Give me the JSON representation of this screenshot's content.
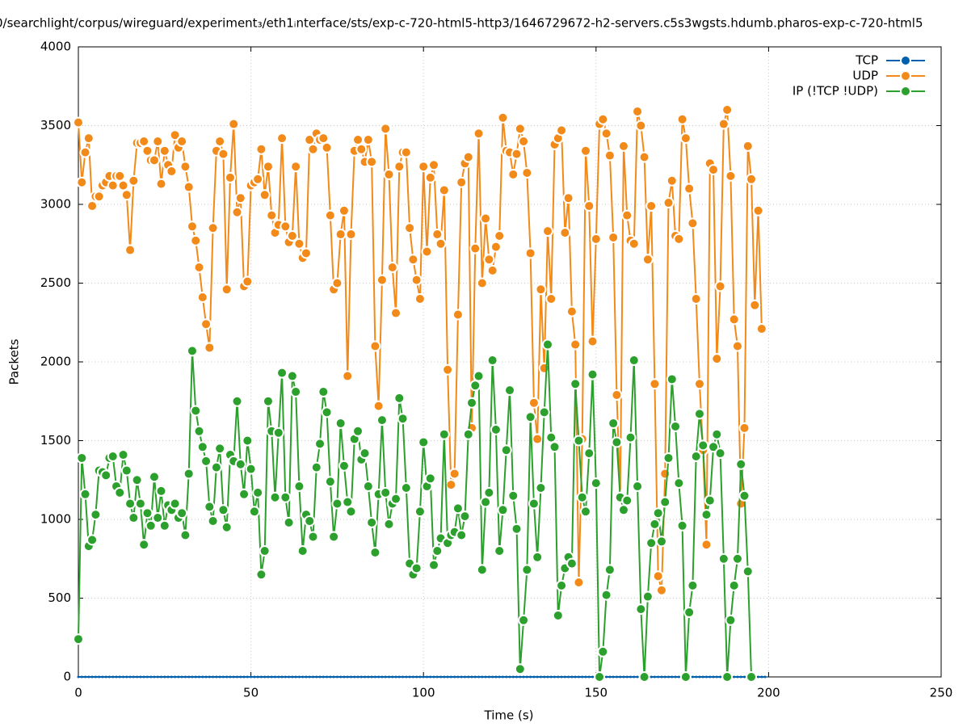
{
  "chart_data": {
    "type": "line",
    "title": "0/searchlight/corpus/wireguard/experiment₃/eth1ᵢnterface/sts/exp-c-720-html5-http3/1646729672-h2-servers.c5s3wgsts.hdumb.pharos-exp-c-720-html5",
    "xlabel": "Time (s)",
    "ylabel": "Packets",
    "xlim": [
      0,
      250
    ],
    "xticks": [
      0,
      50,
      100,
      150,
      200,
      250
    ],
    "ylim": [
      0,
      4000
    ],
    "yticks": [
      0,
      500,
      1000,
      1500,
      2000,
      2500,
      3000,
      3500,
      4000
    ],
    "grid": true,
    "legend": "upper right",
    "series": [
      {
        "name": "TCP",
        "color": "#0060ad",
        "values": [
          0,
          0,
          0,
          0,
          0,
          0,
          0,
          0,
          0,
          0,
          0,
          0,
          0,
          0,
          0,
          0,
          0,
          0,
          0,
          0,
          0,
          0,
          0,
          0,
          0,
          0,
          0,
          0,
          0,
          0,
          0,
          0,
          0,
          0,
          0,
          0,
          0,
          0,
          0,
          0,
          0,
          0,
          0,
          0,
          0,
          0,
          0,
          0,
          0,
          0,
          0,
          0,
          0,
          0,
          0,
          0,
          0,
          0,
          0,
          0,
          0,
          0,
          0,
          0,
          0,
          0,
          0,
          0,
          0,
          0,
          0,
          0,
          0,
          0,
          0,
          0,
          0,
          0,
          0,
          0,
          0,
          0,
          0,
          0,
          0,
          0,
          0,
          0,
          0,
          0,
          0,
          0,
          0,
          0,
          0,
          0,
          0,
          0,
          0,
          0,
          0,
          0,
          0,
          0,
          0,
          0,
          0,
          0,
          0,
          0,
          0,
          0,
          0,
          0,
          0,
          0,
          0,
          0,
          0,
          0,
          0,
          0,
          0,
          0,
          0,
          0,
          0,
          0,
          0,
          0,
          0,
          0,
          0,
          0,
          0,
          0,
          0,
          0,
          0,
          0,
          0,
          0,
          0,
          0,
          0,
          0,
          0,
          0,
          0,
          0,
          0,
          0,
          0,
          0,
          0,
          0,
          0,
          0,
          0,
          0,
          0,
          0,
          0,
          0,
          0,
          0,
          0,
          0,
          0,
          0,
          0,
          0,
          0,
          0,
          0,
          0,
          0,
          0,
          0,
          0,
          0,
          0,
          0,
          0,
          0,
          0,
          0,
          0,
          0,
          0,
          0,
          0,
          0,
          0,
          0,
          0,
          0,
          0,
          0,
          0
        ]
      },
      {
        "name": "UDP",
        "color": "#f28a1a",
        "values": [
          3520,
          3140,
          3330,
          3420,
          2990,
          3050,
          3050,
          3120,
          3140,
          3180,
          3120,
          3180,
          3180,
          3120,
          3060,
          2710,
          3150,
          3390,
          3390,
          3400,
          3340,
          3280,
          3280,
          3400,
          3130,
          3340,
          3250,
          3210,
          3440,
          3360,
          3400,
          3240,
          3110,
          2860,
          2770,
          2600,
          2410,
          2240,
          2090,
          2850,
          3340,
          3400,
          3320,
          2460,
          3170,
          3510,
          2950,
          3040,
          2480,
          2510,
          3120,
          3140,
          3160,
          3350,
          3060,
          3240,
          2930,
          2820,
          2870,
          3420,
          2860,
          2760,
          2800,
          3240,
          2750,
          2660,
          2690,
          3410,
          3350,
          3450,
          3410,
          3420,
          3360,
          2930,
          2460,
          2500,
          2810,
          2960,
          1910,
          2810,
          3340,
          3410,
          3350,
          3270,
          3410,
          3270,
          2100,
          1720,
          2520,
          3480,
          3190,
          2600,
          2310,
          3240,
          3330,
          3330,
          2850,
          2650,
          2520,
          2400,
          3240,
          2700,
          3170,
          3250,
          2810,
          2750,
          3090,
          1950,
          1220,
          1290,
          2300,
          3140,
          3260,
          3300,
          1580,
          2720,
          3450,
          2500,
          2910,
          2650,
          2580,
          2730,
          2800,
          3550,
          3340,
          3330,
          3190,
          3320,
          3480,
          3400,
          3200,
          2690,
          1740,
          1510,
          2460,
          1960,
          2830,
          2400,
          3380,
          3420,
          3470,
          2820,
          3040,
          2320,
          2110,
          600,
          1510,
          3340,
          2990,
          2130,
          2780,
          3510,
          3540,
          3450,
          3310,
          2790,
          1790,
          1150,
          3370,
          2930,
          2770,
          2750,
          3590,
          3500,
          3300,
          2650,
          2990,
          1860,
          640,
          550,
          1290,
          3010,
          3150,
          2800,
          2780,
          3540,
          3420,
          3100,
          2880,
          2400,
          1860,
          1440,
          840,
          3260,
          3220,
          2020,
          2480,
          3510,
          3600,
          3180,
          2270,
          2100,
          1100,
          1580,
          3370,
          3160,
          2360,
          2960,
          2210
        ]
      },
      {
        "name": "IP (!TCP  !UDP)",
        "color": "#2ca02c",
        "values": [
          240,
          1390,
          1160,
          830,
          870,
          1030,
          1310,
          1300,
          1280,
          1390,
          1400,
          1210,
          1170,
          1410,
          1310,
          1100,
          1010,
          1250,
          1100,
          840,
          1040,
          960,
          1270,
          1010,
          1180,
          960,
          1090,
          1060,
          1100,
          1010,
          1040,
          900,
          1290,
          2070,
          1690,
          1560,
          1460,
          1370,
          1080,
          990,
          1330,
          1450,
          1060,
          950,
          1410,
          1370,
          1750,
          1350,
          1160,
          1500,
          1320,
          1050,
          1170,
          650,
          800,
          1750,
          1560,
          1140,
          1550,
          1930,
          1140,
          980,
          1910,
          1810,
          1210,
          800,
          1030,
          990,
          890,
          1330,
          1480,
          1810,
          1680,
          1240,
          890,
          1100,
          1610,
          1340,
          1110,
          1050,
          1510,
          1560,
          1380,
          1420,
          1210,
          980,
          790,
          1160,
          1630,
          1170,
          970,
          1100,
          1130,
          1770,
          1640,
          1200,
          720,
          650,
          690,
          1050,
          1490,
          1210,
          1260,
          710,
          800,
          880,
          1540,
          850,
          900,
          920,
          1070,
          900,
          1020,
          1540,
          1740,
          1850,
          1910,
          680,
          1110,
          1170,
          2010,
          1570,
          800,
          1060,
          1440,
          1820,
          1150,
          940,
          50,
          360,
          680,
          1650,
          1100,
          760,
          1200,
          1680,
          2110,
          1520,
          1460,
          390,
          580,
          690,
          760,
          720,
          1860,
          1500,
          1140,
          1050,
          1420,
          1920,
          1230,
          0,
          160,
          520,
          680,
          1610,
          1490,
          1140,
          1060,
          1120,
          1520,
          2010,
          1210,
          430,
          0,
          510,
          850,
          970,
          1040,
          860,
          1110,
          1390,
          1890,
          1590,
          1230,
          960,
          0,
          410,
          580,
          1400,
          1670,
          1470,
          1030,
          1120,
          1460,
          1540,
          1420,
          750,
          0,
          360,
          580,
          750,
          1350,
          1150,
          670,
          0
        ]
      }
    ]
  }
}
